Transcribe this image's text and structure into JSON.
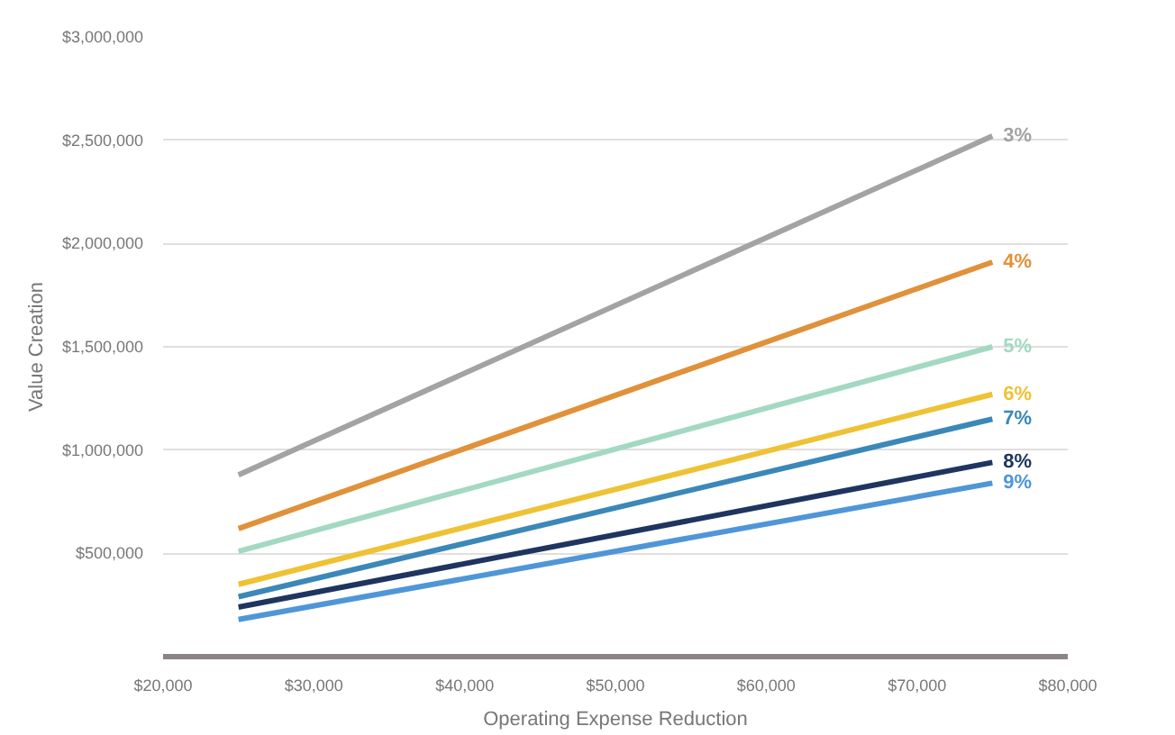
{
  "chart_data": {
    "type": "line",
    "xlabel": "Operating Expense Reduction",
    "ylabel": "Value Creation",
    "x": [
      25000,
      75000
    ],
    "series": [
      {
        "name": "3%",
        "color": "#a3a3a3",
        "values": [
          880000,
          2520000
        ]
      },
      {
        "name": "4%",
        "color": "#e0913a",
        "values": [
          620000,
          1910000
        ]
      },
      {
        "name": "5%",
        "color": "#a3d9c3",
        "values": [
          510000,
          1500000
        ]
      },
      {
        "name": "6%",
        "color": "#eec234",
        "values": [
          350000,
          1270000
        ]
      },
      {
        "name": "7%",
        "color": "#3b88b8",
        "values": [
          290000,
          1150000
        ]
      },
      {
        "name": "8%",
        "color": "#1f3560",
        "values": [
          240000,
          940000
        ]
      },
      {
        "name": "9%",
        "color": "#4f96d8",
        "values": [
          180000,
          840000
        ]
      }
    ],
    "xlim": [
      20000,
      80000
    ],
    "xticks": [
      {
        "value": 20000,
        "label": "$20,000"
      },
      {
        "value": 30000,
        "label": "$30,000"
      },
      {
        "value": 40000,
        "label": "$40,000"
      },
      {
        "value": 50000,
        "label": "$50,000"
      },
      {
        "value": 60000,
        "label": "$60,000"
      },
      {
        "value": 70000,
        "label": "$70,000"
      },
      {
        "value": 80000,
        "label": "$80,000"
      }
    ],
    "ylim": [
      0,
      3000000
    ],
    "yticks": [
      {
        "value": 500000,
        "label": "$500,000"
      },
      {
        "value": 1000000,
        "label": "$1,000,000"
      },
      {
        "value": 1500000,
        "label": "$1,500,000"
      },
      {
        "value": 2000000,
        "label": "$2,000,000"
      },
      {
        "value": 2500000,
        "label": "$2,500,000"
      },
      {
        "value": 3000000,
        "label": "$3,000,000"
      }
    ],
    "grid": "y",
    "marker": "none",
    "line_style": "solid",
    "legend": false
  }
}
